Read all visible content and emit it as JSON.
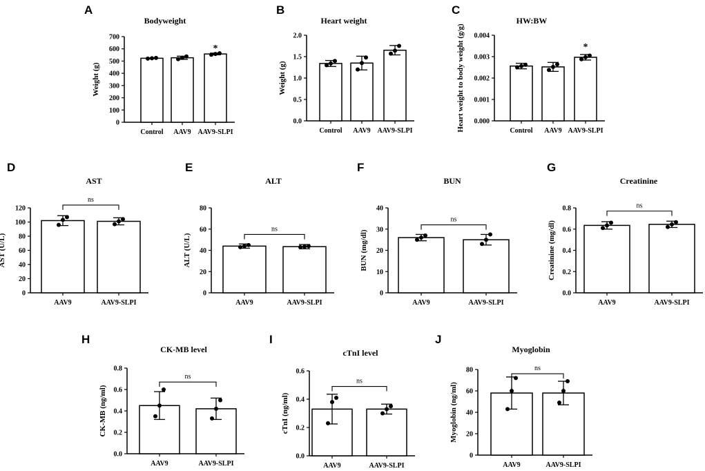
{
  "figure": {
    "colors": {
      "bar_fill": "#ffffff",
      "stroke": "#000000",
      "point": "#000000"
    }
  },
  "chart_data": [
    {
      "panel": "A",
      "type": "bar",
      "title": "Bodyweight",
      "xlabel": "",
      "ylabel": "Weight (g)",
      "ylim": [
        0,
        700
      ],
      "yticks": [
        0,
        100,
        200,
        300,
        400,
        500,
        600,
        700
      ],
      "ytick_labels": [
        "0",
        "100",
        "200",
        "300",
        "400",
        "500",
        "600",
        "700"
      ],
      "categories": [
        "Control",
        "AAV9",
        "AAV9-SLPI"
      ],
      "values": [
        523,
        527,
        558
      ],
      "errors": [
        3,
        13,
        7
      ],
      "points": [
        [
          520,
          523,
          526
        ],
        [
          516,
          527,
          538
        ],
        [
          552,
          558,
          564
        ]
      ],
      "annotations": [
        {
          "text": "*",
          "category": "AAV9-SLPI",
          "y": 605
        }
      ]
    },
    {
      "panel": "B",
      "type": "bar",
      "title": "Heart weight",
      "xlabel": "",
      "ylabel": "Weight (g)",
      "ylim": [
        0,
        2.0
      ],
      "yticks": [
        0,
        0.5,
        1.0,
        1.5,
        2.0
      ],
      "ytick_labels": [
        "0.0",
        "0.5",
        "1.0",
        "1.5",
        "2.0"
      ],
      "categories": [
        "Control",
        "AAV9",
        "AAV9-SLPI"
      ],
      "values": [
        1.34,
        1.35,
        1.65
      ],
      "errors": [
        0.07,
        0.16,
        0.11
      ],
      "points": [
        [
          1.3,
          1.34,
          1.4
        ],
        [
          1.2,
          1.35,
          1.48
        ],
        [
          1.57,
          1.64,
          1.75
        ]
      ],
      "annotations": []
    },
    {
      "panel": "C",
      "type": "bar",
      "title": "HW:BW",
      "xlabel": "",
      "ylabel": "Heart weight to body weight (g/g)",
      "ylim": [
        0,
        0.004
      ],
      "yticks": [
        0,
        0.001,
        0.002,
        0.003,
        0.004
      ],
      "ytick_labels": [
        "0.000",
        "0.001",
        "0.002",
        "0.003",
        "0.004"
      ],
      "categories": [
        "Control",
        "AAV9",
        "AAV9-SLPI"
      ],
      "values": [
        0.00256,
        0.00252,
        0.00297
      ],
      "errors": [
        0.00013,
        0.00021,
        0.00013
      ],
      "points": [
        [
          0.0025,
          0.00256,
          0.00262
        ],
        [
          0.00238,
          0.00252,
          0.00264
        ],
        [
          0.00288,
          0.00297,
          0.00305
        ]
      ],
      "annotations": [
        {
          "text": "*",
          "category": "AAV9-SLPI",
          "y": 0.00345
        }
      ]
    },
    {
      "panel": "D",
      "type": "bar",
      "title": "AST",
      "xlabel": "",
      "ylabel": "AST (U/L)",
      "ylim": [
        0,
        120
      ],
      "yticks": [
        0,
        20,
        40,
        60,
        80,
        100,
        120
      ],
      "ytick_labels": [
        "0",
        "20",
        "40",
        "60",
        "80",
        "100",
        "120"
      ],
      "categories": [
        "AAV9",
        "AAV9-SLPI"
      ],
      "values": [
        102,
        101
      ],
      "errors": [
        7,
        5
      ],
      "points": [
        [
          96,
          103,
          107
        ],
        [
          97,
          101,
          104
        ]
      ],
      "annotations": [
        {
          "text": "ns",
          "type": "bracket",
          "from": "AAV9",
          "to": "AAV9-SLPI",
          "y": 124
        }
      ]
    },
    {
      "panel": "E",
      "type": "bar",
      "title": "ALT",
      "xlabel": "",
      "ylabel": "ALT (U/L)",
      "ylim": [
        0,
        80
      ],
      "yticks": [
        0,
        20,
        40,
        60,
        80
      ],
      "ytick_labels": [
        "0",
        "20",
        "40",
        "60",
        "80"
      ],
      "categories": [
        "AAV9",
        "AAV9-SLPI"
      ],
      "values": [
        44,
        43.5
      ],
      "errors": [
        2,
        2
      ],
      "points": [
        [
          43,
          44,
          45
        ],
        [
          43,
          43.5,
          44
        ]
      ],
      "annotations": [
        {
          "text": "ns",
          "type": "bracket",
          "from": "AAV9",
          "to": "AAV9-SLPI",
          "y": 55
        }
      ]
    },
    {
      "panel": "F",
      "type": "bar",
      "title": "BUN",
      "xlabel": "",
      "ylabel": "BUN (mg/dl)",
      "ylim": [
        0,
        40
      ],
      "yticks": [
        0,
        10,
        20,
        30,
        40
      ],
      "ytick_labels": [
        "0",
        "10",
        "20",
        "30",
        "40"
      ],
      "categories": [
        "AAV9",
        "AAV9-SLPI"
      ],
      "values": [
        26,
        25
      ],
      "errors": [
        1.5,
        2.5
      ],
      "points": [
        [
          25,
          26,
          27
        ],
        [
          23,
          25,
          27.5
        ]
      ],
      "annotations": [
        {
          "text": "ns",
          "type": "bracket",
          "from": "AAV9",
          "to": "AAV9-SLPI",
          "y": 32
        }
      ]
    },
    {
      "panel": "G",
      "type": "bar",
      "title": "Creatinine",
      "xlabel": "",
      "ylabel": "Creatinine (mg/dl)",
      "ylim": [
        0,
        0.8
      ],
      "yticks": [
        0,
        0.2,
        0.4,
        0.6,
        0.8
      ],
      "ytick_labels": [
        "0.0",
        "0.2",
        "0.4",
        "0.6",
        "0.8"
      ],
      "categories": [
        "AAV9",
        "AAV9-SLPI"
      ],
      "values": [
        0.635,
        0.645
      ],
      "errors": [
        0.035,
        0.03
      ],
      "points": [
        [
          0.61,
          0.635,
          0.66
        ],
        [
          0.62,
          0.645,
          0.665
        ]
      ],
      "annotations": [
        {
          "text": "ns",
          "type": "bracket",
          "from": "AAV9",
          "to": "AAV9-SLPI",
          "y": 0.77
        }
      ]
    },
    {
      "panel": "H",
      "type": "bar",
      "title": "CK-MB level",
      "xlabel": "",
      "ylabel": "CK-MB (ng/ml)",
      "ylim": [
        0,
        0.8
      ],
      "yticks": [
        0,
        0.2,
        0.4,
        0.6,
        0.8
      ],
      "ytick_labels": [
        "0.0",
        "0.2",
        "0.4",
        "0.6",
        "0.8"
      ],
      "categories": [
        "AAV9",
        "AAV9-SLPI"
      ],
      "values": [
        0.45,
        0.42
      ],
      "errors": [
        0.13,
        0.1
      ],
      "points": [
        [
          0.35,
          0.45,
          0.6
        ],
        [
          0.33,
          0.42,
          0.5
        ]
      ],
      "annotations": [
        {
          "text": "ns",
          "type": "bracket",
          "from": "AAV9",
          "to": "AAV9-SLPI",
          "y": 0.67
        }
      ]
    },
    {
      "panel": "I",
      "type": "bar",
      "title": "cTnI level",
      "xlabel": "",
      "ylabel": "cTnI (ng/ml)",
      "ylim": [
        0,
        0.6
      ],
      "yticks": [
        0,
        0.2,
        0.4,
        0.6
      ],
      "ytick_labels": [
        "0.0",
        "0.2",
        "0.4",
        "0.6"
      ],
      "categories": [
        "AAV9",
        "AAV9-SLPI"
      ],
      "values": [
        0.33,
        0.33
      ],
      "errors": [
        0.105,
        0.035
      ],
      "points": [
        [
          0.23,
          0.38,
          0.41
        ],
        [
          0.3,
          0.33,
          0.35
        ]
      ],
      "annotations": [
        {
          "text": "ns",
          "type": "bracket",
          "from": "AAV9",
          "to": "AAV9-SLPI",
          "y": 0.49
        }
      ]
    },
    {
      "panel": "J",
      "type": "bar",
      "title": "Myoglobin",
      "xlabel": "",
      "ylabel": "Myoglobin (ng/ml)",
      "ylim": [
        0,
        80
      ],
      "yticks": [
        0,
        20,
        40,
        60,
        80
      ],
      "ytick_labels": [
        "0",
        "20",
        "40",
        "60",
        "80"
      ],
      "categories": [
        "AAV9",
        "AAV9-SLPI"
      ],
      "values": [
        58,
        58
      ],
      "errors": [
        15,
        11
      ],
      "points": [
        [
          43,
          60,
          72
        ],
        [
          49,
          60,
          69
        ]
      ],
      "annotations": [
        {
          "text": "ns",
          "type": "bracket",
          "from": "AAV9",
          "to": "AAV9-SLPI",
          "y": 76
        }
      ]
    }
  ]
}
